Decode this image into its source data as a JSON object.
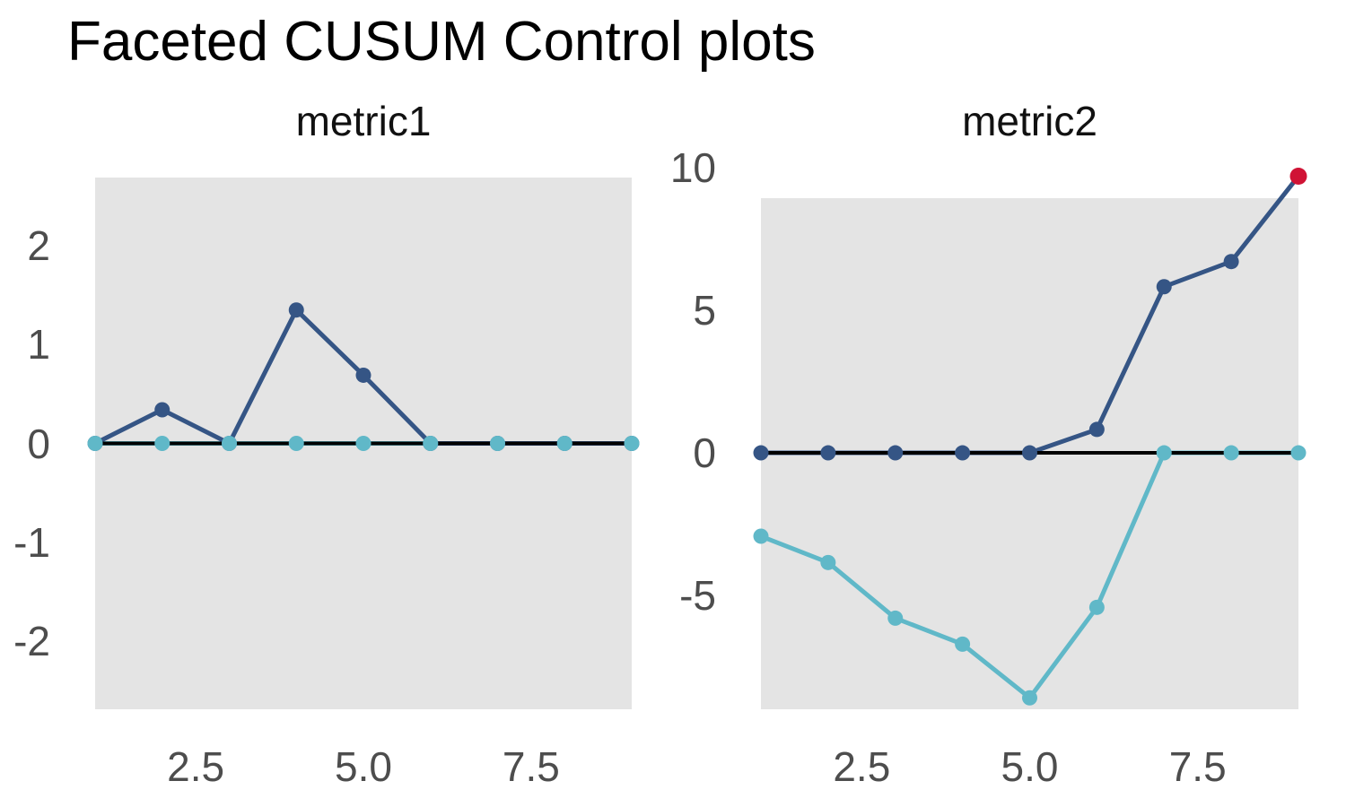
{
  "title": "Faceted CUSUM Control plots",
  "colors": {
    "high_series": "#355585",
    "low_series": "#60b8c8",
    "violation": "#d01335",
    "panel_background": "#e4e4e4",
    "zero_line": "#000000",
    "axis_text": "#4d4d4d"
  },
  "chart_data": [
    {
      "type": "line",
      "facet": "metric1",
      "x": [
        1,
        2,
        3,
        4,
        5,
        6,
        7,
        8,
        9
      ],
      "series": [
        {
          "name": "cusum_high",
          "color_key": "high_series",
          "values": [
            0,
            0.34,
            0,
            1.35,
            0.69,
            0,
            0,
            0,
            0
          ],
          "violations": []
        },
        {
          "name": "cusum_low",
          "color_key": "low_series",
          "values": [
            0,
            0,
            0,
            0,
            0,
            0,
            0,
            0,
            0
          ],
          "violations": []
        }
      ],
      "center_line": 0,
      "x_ticks": [
        {
          "value": 2.5,
          "label": "2.5"
        },
        {
          "value": 5,
          "label": "5.0"
        },
        {
          "value": 7.5,
          "label": "7.5"
        }
      ],
      "y_ticks": [
        {
          "value": 2,
          "label": "2"
        },
        {
          "value": 1,
          "label": "1"
        },
        {
          "value": 0,
          "label": "0"
        },
        {
          "value": -1,
          "label": "-1"
        },
        {
          "value": -2,
          "label": "-2"
        }
      ],
      "xlim": [
        1,
        9
      ],
      "ylim": [
        -2.69,
        2.69
      ],
      "grid": false,
      "legend": "none"
    },
    {
      "type": "line",
      "facet": "metric2",
      "x": [
        1,
        2,
        3,
        4,
        5,
        6,
        7,
        8,
        9
      ],
      "series": [
        {
          "name": "cusum_high",
          "color_key": "high_series",
          "values": [
            0,
            0,
            0,
            0,
            0,
            0.82,
            5.82,
            6.7,
            9.69
          ],
          "violations": [
            9
          ]
        },
        {
          "name": "cusum_low",
          "color_key": "low_series",
          "values": [
            -2.92,
            -3.84,
            -5.79,
            -6.7,
            -8.58,
            -5.41,
            0,
            0,
            0
          ],
          "violations": []
        }
      ],
      "center_line": 0,
      "x_ticks": [
        {
          "value": 2.5,
          "label": "2.5"
        },
        {
          "value": 5,
          "label": "5.0"
        },
        {
          "value": 7.5,
          "label": "7.5"
        }
      ],
      "y_ticks": [
        {
          "value": 10,
          "label": "10"
        },
        {
          "value": 5,
          "label": "5"
        },
        {
          "value": 0,
          "label": "0"
        },
        {
          "value": -5,
          "label": "-5"
        }
      ],
      "xlim": [
        1,
        9
      ],
      "ylim": [
        -8.98,
        8.92
      ],
      "grid": false,
      "legend": "none"
    }
  ]
}
